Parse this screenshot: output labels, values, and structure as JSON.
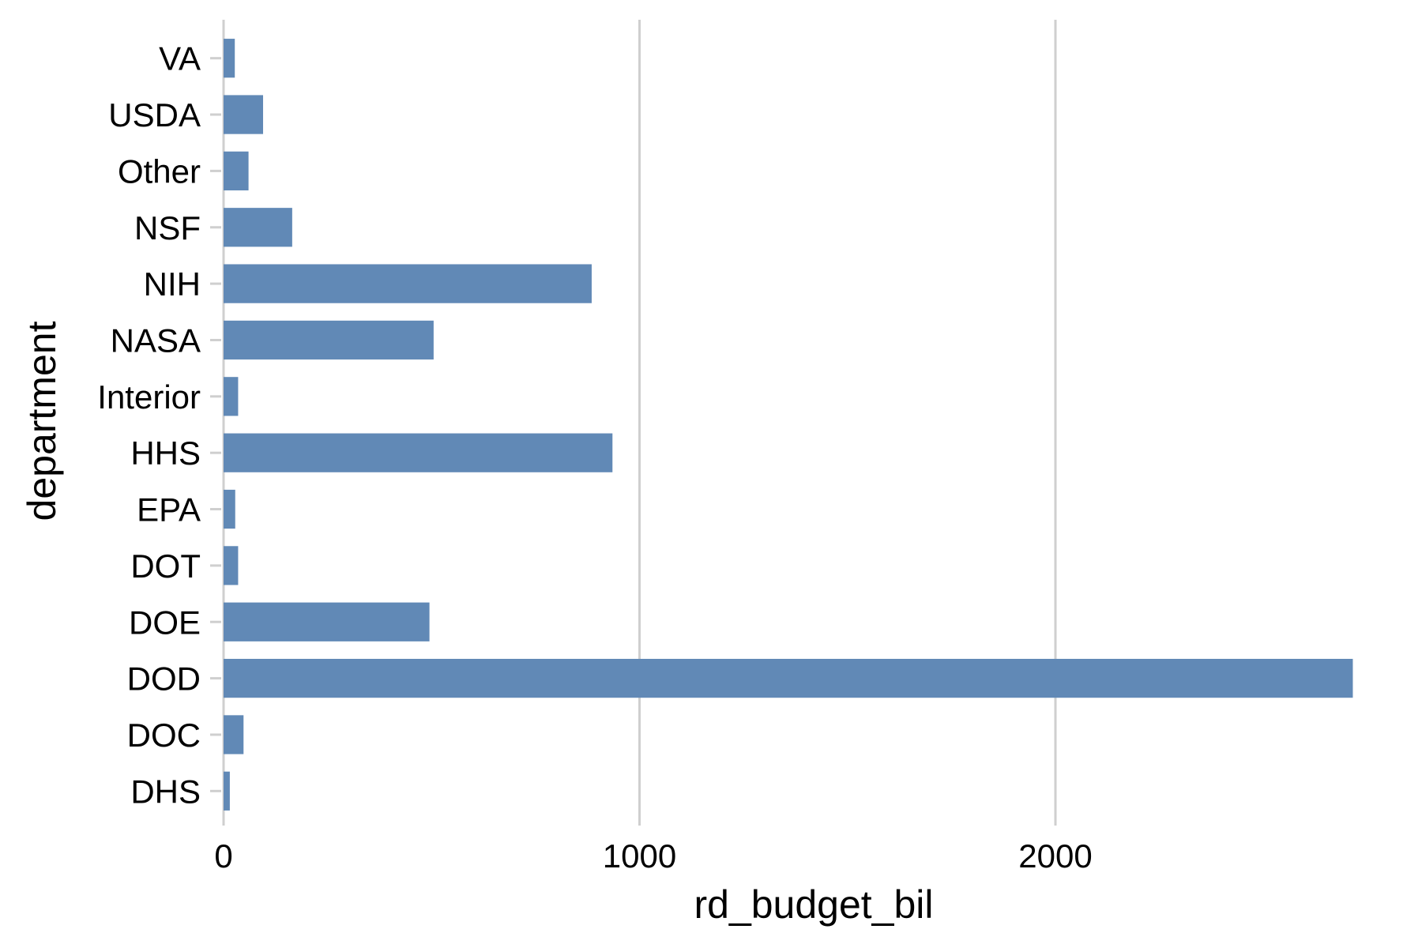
{
  "chart_data": {
    "type": "bar",
    "orientation": "horizontal",
    "categories": [
      "VA",
      "USDA",
      "Other",
      "NSF",
      "NIH",
      "NASA",
      "Interior",
      "HHS",
      "EPA",
      "DOT",
      "DOE",
      "DOD",
      "DOC",
      "DHS"
    ],
    "values": [
      27,
      95,
      60,
      165,
      885,
      505,
      35,
      935,
      28,
      35,
      495,
      2715,
      48,
      15
    ],
    "xlabel": "rd_budget_bil",
    "ylabel": "department",
    "xlim": [
      0,
      2800
    ],
    "x_ticks": [
      0,
      1000,
      2000
    ],
    "x_tick_labels": [
      "0",
      "1000",
      "2000"
    ],
    "grid": "vertical major gridlines",
    "bar_color": "#6189b6",
    "grid_color": "#cfcfcf"
  }
}
